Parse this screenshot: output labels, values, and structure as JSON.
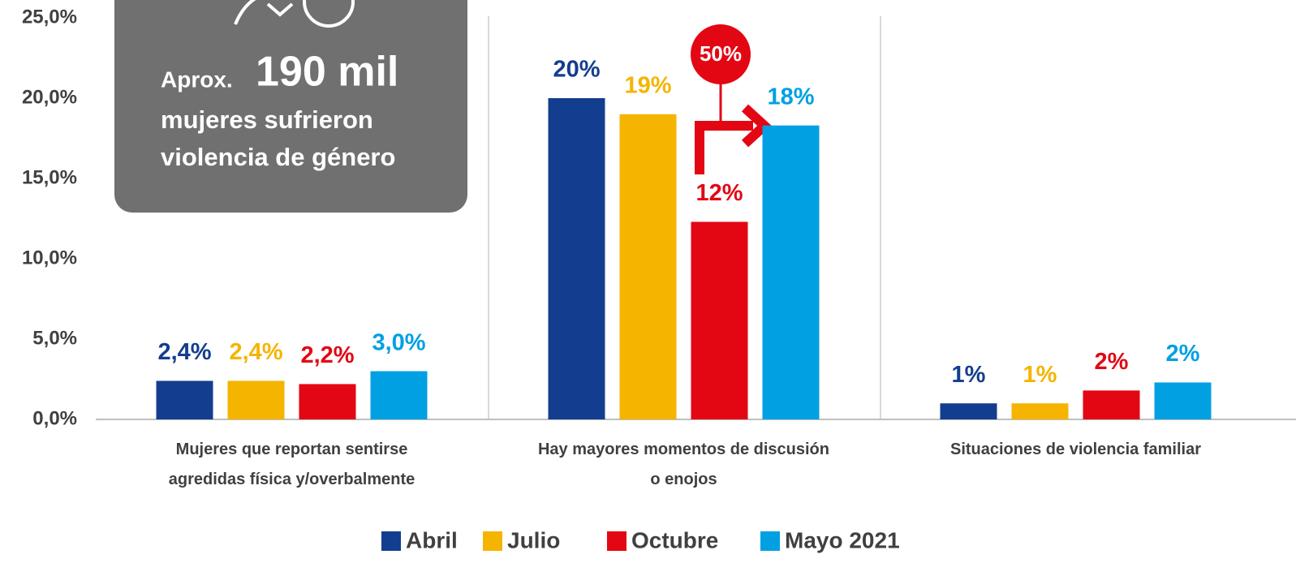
{
  "chart_data": {
    "type": "bar",
    "categories": [
      "Mujeres que reportan sentirse\nagredidas física y/overbalmente",
      "Hay mayores momentos de discusión\no enojos",
      "Situaciones de violencia familiar"
    ],
    "series": [
      {
        "name": "Abril",
        "color": "#133d8e",
        "values": [
          2.4,
          20,
          1.0
        ],
        "value_labels": [
          "2,4%",
          "20%",
          "1%"
        ]
      },
      {
        "name": "Julio",
        "color": "#f5b400",
        "values": [
          2.4,
          19,
          1.0
        ],
        "value_labels": [
          "2,4%",
          "19%",
          "1%"
        ]
      },
      {
        "name": "Octubre",
        "color": "#e30613",
        "values": [
          2.2,
          12.3,
          1.8
        ],
        "value_labels": [
          "2,2%",
          "12%",
          "2%"
        ]
      },
      {
        "name": "Mayo 2021",
        "color": "#00a0e3",
        "values": [
          3.0,
          18.3,
          2.3
        ],
        "value_labels": [
          "3,0%",
          "18%",
          "2%"
        ]
      }
    ],
    "ylim": [
      0,
      25
    ],
    "yticks": [
      {
        "value": 0,
        "label": "0,0%"
      },
      {
        "value": 5,
        "label": "5,0%"
      },
      {
        "value": 10,
        "label": "10,0%"
      },
      {
        "value": 15,
        "label": "15,0%"
      },
      {
        "value": 20,
        "label": "20,0%"
      },
      {
        "value": 25,
        "label": "25,0%"
      }
    ],
    "grid": false,
    "legend": "bottom",
    "annotations": {
      "box_prefix": "Aprox.",
      "box_number": "190 mil",
      "box_line1": "mujeres sufrieron",
      "box_line2": "violencia de género",
      "change": "50%"
    }
  }
}
